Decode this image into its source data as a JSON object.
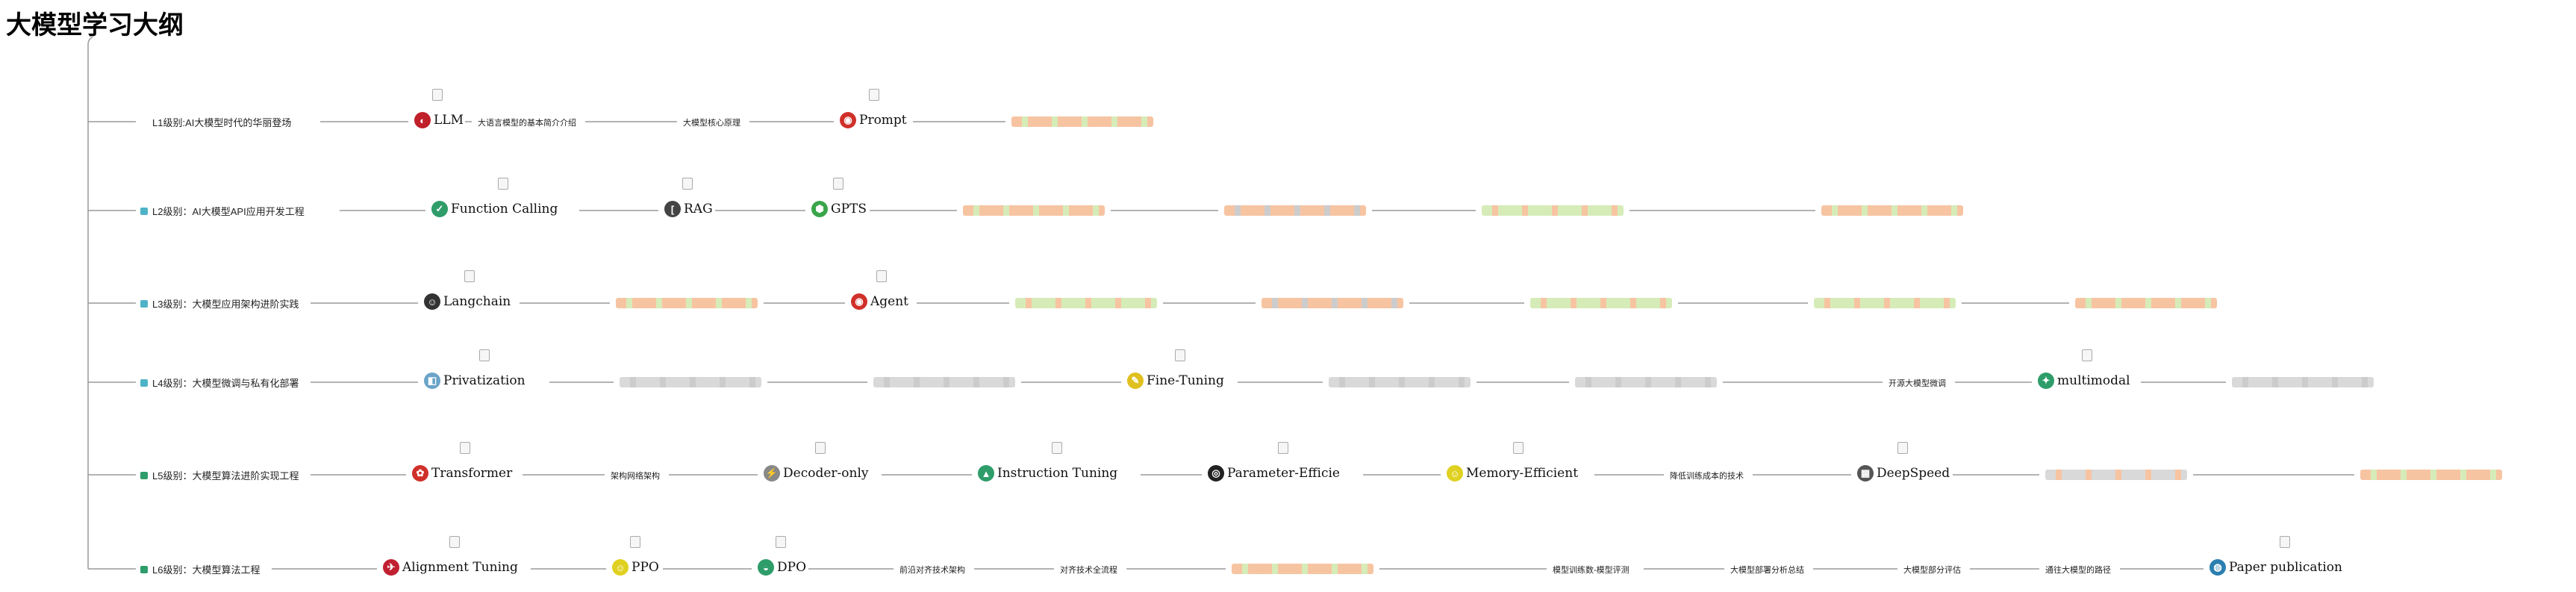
{
  "title": "大模型学习大纲",
  "stages": [
    {
      "label": "L1级别:AI大模型时代的华丽登场",
      "bullet_color": "#ffffff",
      "nodes": [
        {
          "kind": "logo",
          "label": "LLM",
          "logo_bg": "#c0202a",
          "logo_char": "◐",
          "icon": "llm-logo-icon"
        },
        {
          "kind": "text",
          "label": "大语言模型的基本简介介绍"
        },
        {
          "kind": "text",
          "label": "大模型核心原理"
        },
        {
          "kind": "logo",
          "label": "Prompt",
          "logo_bg": "#d0302a",
          "logo_char": "◉",
          "icon": "prompt-logo-icon"
        },
        {
          "kind": "blur",
          "colors": [
            "#f4b183",
            "#c8e6a0"
          ]
        }
      ]
    },
    {
      "label": "L2级别：AI大模型API应用开发工程",
      "bullet_color": "#4fb3c7",
      "nodes": [
        {
          "kind": "logo",
          "label": "Function Calling",
          "logo_bg": "#2e9d6a",
          "logo_char": "✓",
          "icon": "function-calling-logo-icon"
        },
        {
          "kind": "logo",
          "label": "RAG",
          "logo_bg": "#444444",
          "logo_char": "[",
          "icon": "rag-logo-icon"
        },
        {
          "kind": "logo",
          "label": "GPTS",
          "logo_bg": "#3aa54a",
          "logo_char": "⬢",
          "icon": "gpts-logo-icon"
        },
        {
          "kind": "blur",
          "colors": [
            "#f4b183",
            "#c8e6a0"
          ]
        },
        {
          "kind": "blur",
          "colors": [
            "#f4b183",
            "#bbbbbb"
          ]
        },
        {
          "kind": "blur",
          "colors": [
            "#c8e6a0",
            "#f4b183"
          ]
        },
        {
          "kind": "blur",
          "colors": [
            "#f4b183",
            "#c8e6a0"
          ]
        }
      ]
    },
    {
      "label": "L3级别：大模型应用架构进阶实践",
      "bullet_color": "#4fb3c7",
      "nodes": [
        {
          "kind": "logo",
          "label": "Langchain",
          "logo_bg": "#333333",
          "logo_char": "☺",
          "icon": "langchain-logo-icon"
        },
        {
          "kind": "blur",
          "colors": [
            "#f4b183",
            "#c8e6a0"
          ]
        },
        {
          "kind": "logo",
          "label": "Agent",
          "logo_bg": "#d0302a",
          "logo_char": "◉",
          "icon": "agent-logo-icon"
        },
        {
          "kind": "blur",
          "colors": [
            "#c8e6a0",
            "#f4b183"
          ]
        },
        {
          "kind": "blur",
          "colors": [
            "#f4b183",
            "#bbbbbb"
          ]
        },
        {
          "kind": "blur",
          "colors": [
            "#c8e6a0",
            "#f4b183"
          ]
        },
        {
          "kind": "blur",
          "colors": [
            "#c8e6a0",
            "#f4b183"
          ]
        },
        {
          "kind": "blur",
          "colors": [
            "#f4b183",
            "#c8e6a0"
          ]
        }
      ]
    },
    {
      "label": "L4级别：大模型微调与私有化部署",
      "bullet_color": "#4fb3c7",
      "nodes": [
        {
          "kind": "logo",
          "label": "Privatization",
          "logo_bg": "#6aa4c8",
          "logo_char": "◧",
          "icon": "privatization-logo-icon"
        },
        {
          "kind": "blur",
          "colors": [
            "#cccccc",
            "#bbbbbb"
          ]
        },
        {
          "kind": "blur",
          "colors": [
            "#cccccc",
            "#bbbbbb"
          ]
        },
        {
          "kind": "logo",
          "label": "Fine-Tuning",
          "logo_bg": "#e0c020",
          "logo_char": "✎",
          "icon": "fine-tuning-logo-icon"
        },
        {
          "kind": "blur",
          "colors": [
            "#cccccc",
            "#bbbbbb"
          ]
        },
        {
          "kind": "blur",
          "colors": [
            "#cccccc",
            "#bbbbbb"
          ]
        },
        {
          "kind": "text",
          "label": "开源大模型微调"
        },
        {
          "kind": "logo",
          "label": "multimodal",
          "logo_bg": "#2e9d6a",
          "logo_char": "✦",
          "icon": "multimodal-logo-icon"
        },
        {
          "kind": "blur",
          "colors": [
            "#cccccc",
            "#bbbbbb"
          ]
        }
      ]
    },
    {
      "label": "L5级别：大模型算法进阶实现工程",
      "bullet_color": "#2e9d6a",
      "nodes": [
        {
          "kind": "logo",
          "label": "Transformer",
          "logo_bg": "#d0302a",
          "logo_char": "✿",
          "icon": "transformer-logo-icon"
        },
        {
          "kind": "text",
          "label": "架构网络架构"
        },
        {
          "kind": "logo",
          "label": "Decoder-only",
          "logo_bg": "#888888",
          "logo_char": "⚡",
          "icon": "decoder-only-logo-icon"
        },
        {
          "kind": "logo",
          "label": "Instruction Tuning",
          "logo_bg": "#2e9d6a",
          "logo_char": "▲",
          "icon": "instruction-tuning-logo-icon"
        },
        {
          "kind": "logo",
          "label": "Parameter-Efficie",
          "logo_bg": "#222222",
          "logo_char": "◎",
          "icon": "parameter-efficient-logo-icon"
        },
        {
          "kind": "logo",
          "label": "Memory-Efficient",
          "logo_bg": "#e0d020",
          "logo_char": "☺",
          "icon": "memory-efficient-logo-icon"
        },
        {
          "kind": "text",
          "label": "降低训练成本的技术"
        },
        {
          "kind": "logo",
          "label": "DeepSpeed",
          "logo_bg": "#555555",
          "logo_char": "▦",
          "icon": "deepspeed-logo-icon"
        },
        {
          "kind": "blur",
          "colors": [
            "#cccccc",
            "#f4b183"
          ]
        },
        {
          "kind": "blur",
          "colors": [
            "#f4b183",
            "#c8e6a0"
          ]
        }
      ]
    },
    {
      "label": "L6级别：大模型算法工程",
      "bullet_color": "#2e9d6a",
      "nodes": [
        {
          "kind": "logo",
          "label": "Alignment Tuning",
          "logo_bg": "#c02030",
          "logo_char": "✈",
          "icon": "alignment-tuning-logo-icon"
        },
        {
          "kind": "logo",
          "label": "PPO",
          "logo_bg": "#e0d020",
          "logo_char": "☺",
          "icon": "ppo-logo-icon"
        },
        {
          "kind": "logo",
          "label": "DPO",
          "logo_bg": "#2e9d6a",
          "logo_char": "◒",
          "icon": "dpo-logo-icon"
        },
        {
          "kind": "text",
          "label": "前沿对齐技术架构"
        },
        {
          "kind": "text",
          "label": "对齐技术全流程"
        },
        {
          "kind": "blur",
          "colors": [
            "#f4b183",
            "#c8e6a0"
          ]
        },
        {
          "kind": "text",
          "label": "模型训练数-模型评测"
        },
        {
          "kind": "text",
          "label": "大模型部署分析总结"
        },
        {
          "kind": "text",
          "label": "大模型部分评估"
        },
        {
          "kind": "text",
          "label": "通往大模型的路径"
        },
        {
          "kind": "logo",
          "label": "Paper publication",
          "logo_bg": "#2a7fb0",
          "logo_char": "◍",
          "icon": "paper-publication-logo-icon"
        }
      ]
    }
  ]
}
